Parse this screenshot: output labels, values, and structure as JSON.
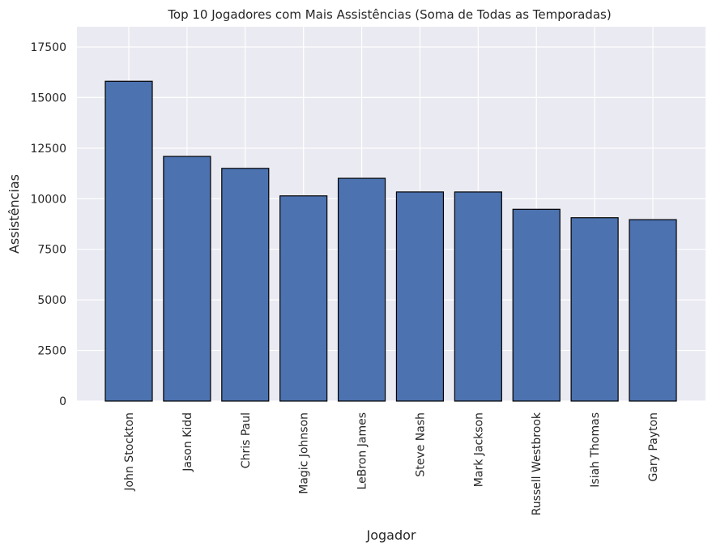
{
  "chart_data": {
    "type": "bar",
    "title": "Top 10 Jogadores com Mais Assistências (Soma de Todas as Temporadas)",
    "xlabel": "Jogador",
    "ylabel": "Assistências",
    "categories": [
      "John Stockton",
      "Jason Kidd",
      "Chris Paul",
      "Magic Johnson",
      "LeBron James",
      "Steve Nash",
      "Mark Jackson",
      "Russell Westbrook",
      "Isiah Thomas",
      "Gary Payton"
    ],
    "values": [
      15806,
      12091,
      11501,
      10141,
      11009,
      10335,
      10334,
      9478,
      9061,
      8966
    ],
    "ylim": [
      0,
      18500
    ],
    "yticks": [
      0,
      2500,
      5000,
      7500,
      10000,
      12500,
      15000,
      17500
    ],
    "ytick_labels": [
      "0",
      "2500",
      "5000",
      "7500",
      "10000",
      "12500",
      "15000",
      "17500"
    ],
    "grid": true,
    "colors": {
      "bar": "#4c72b0",
      "bar_edge": "#000000",
      "plot_background": "#eaeaf2",
      "grid": "#ffffff"
    }
  }
}
